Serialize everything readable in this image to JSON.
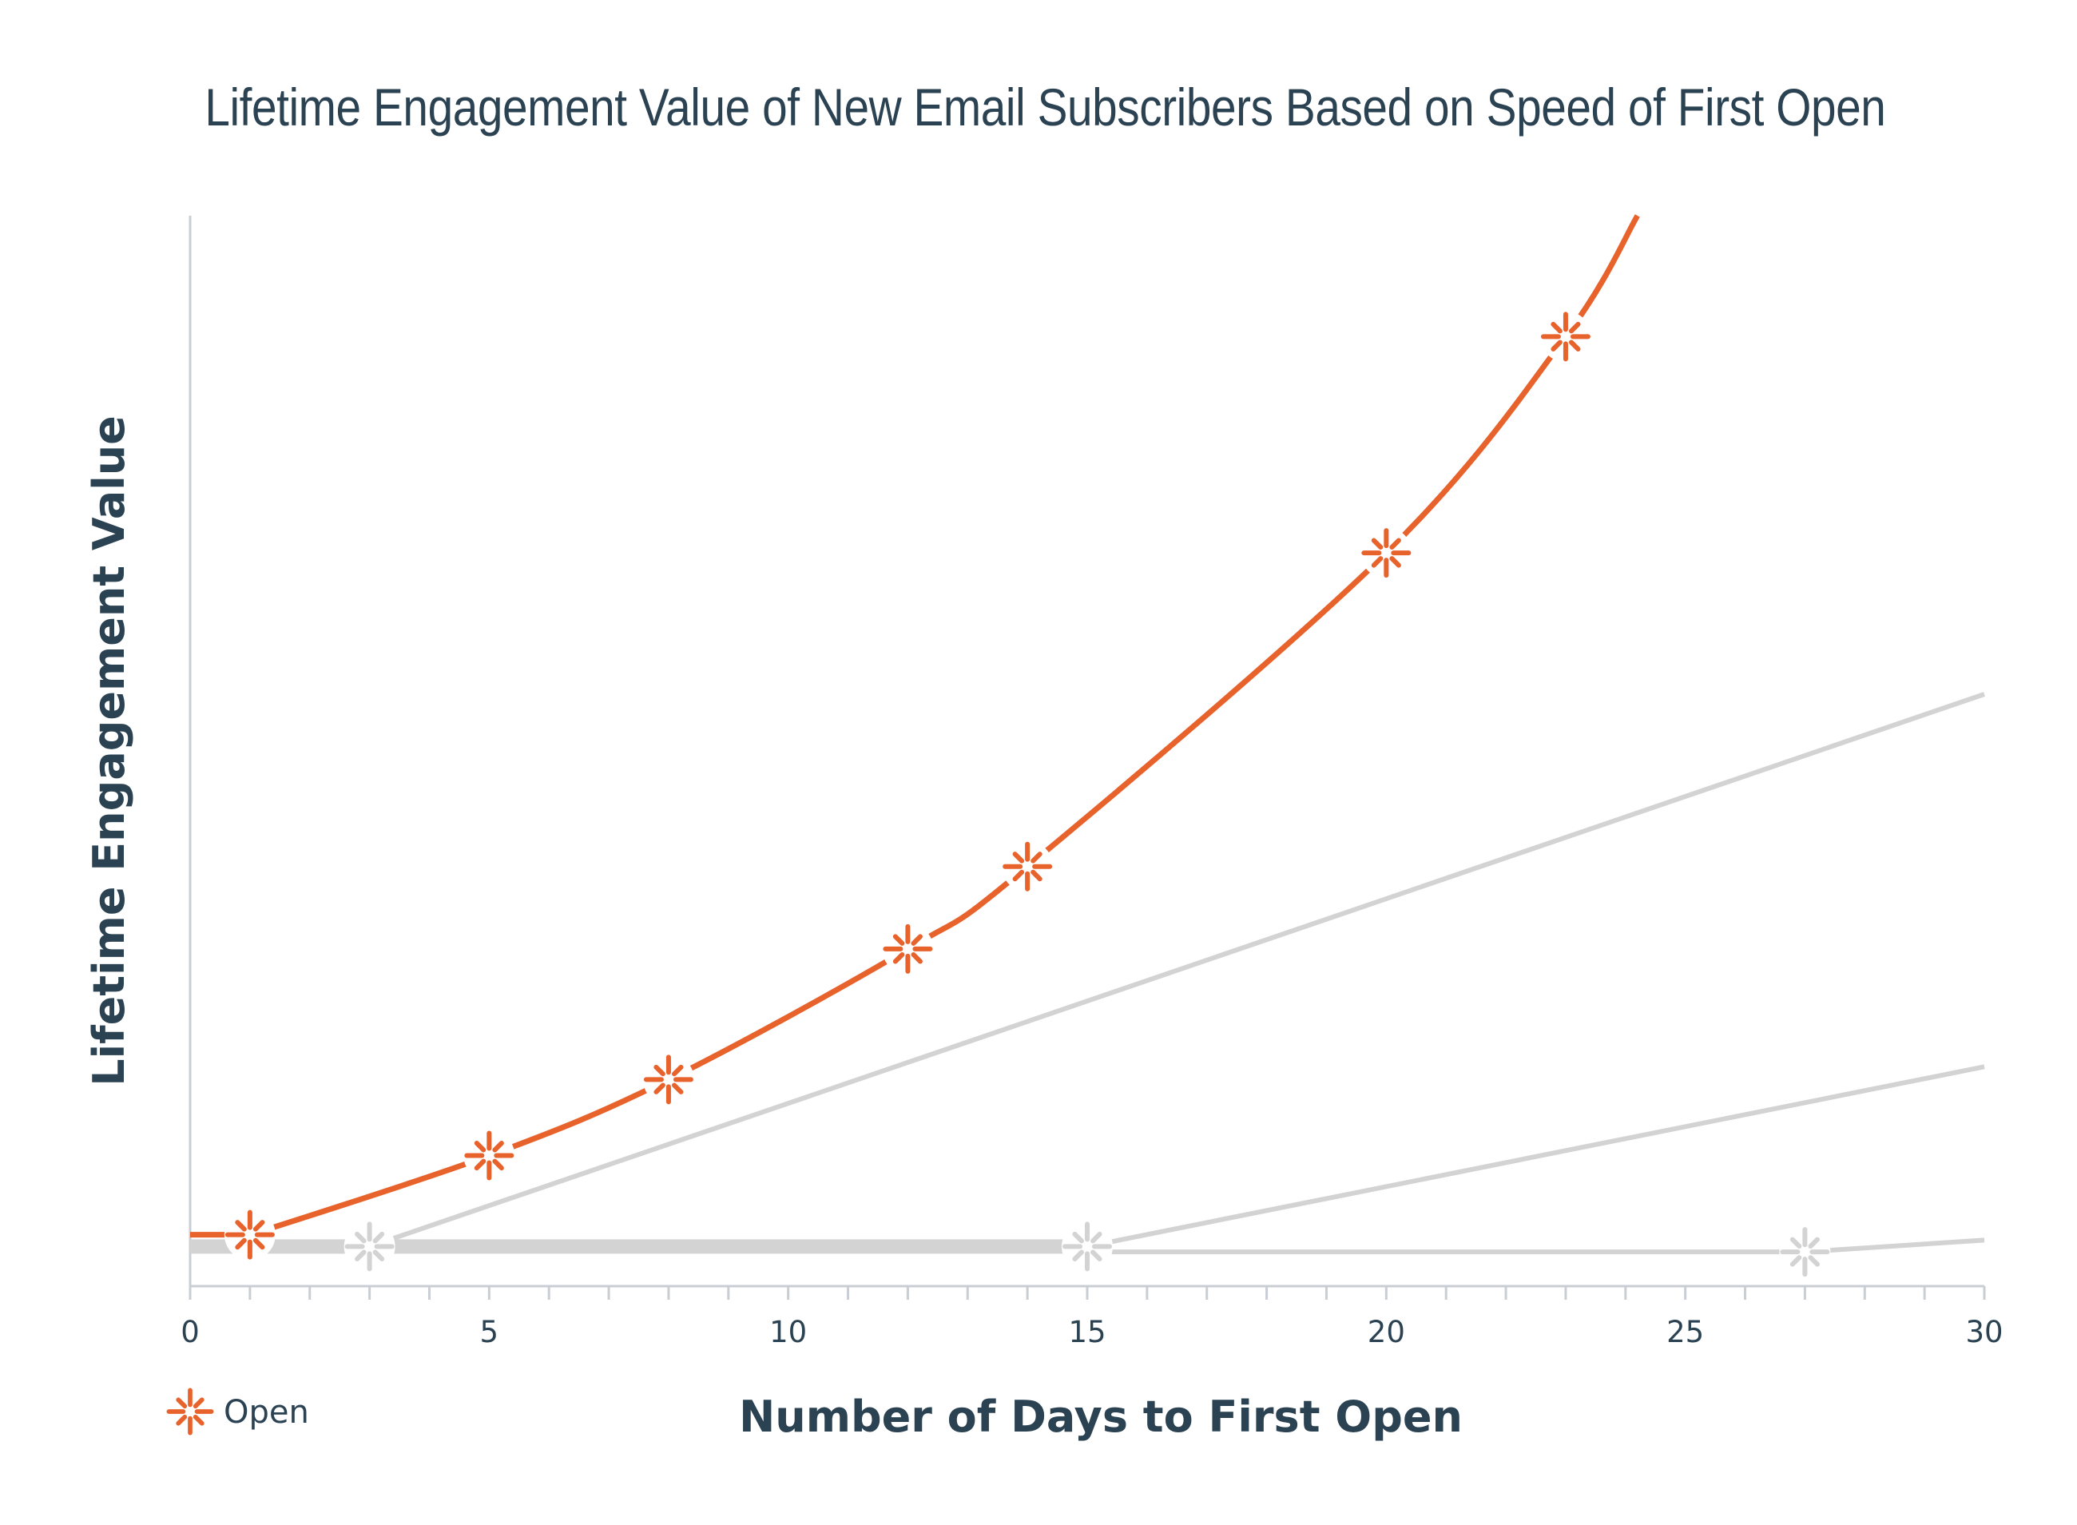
{
  "chart_data": {
    "type": "line",
    "title": "Lifetime Engagement Value of New Email Subscribers Based on Speed of First Open",
    "xlabel": "Number of Days to First Open",
    "ylabel": "Lifetime Engagement Value",
    "xlim": [
      0,
      30
    ],
    "x_ticks": [
      "0",
      "5",
      "10",
      "15",
      "20",
      "25",
      "30"
    ],
    "ylim": [
      0,
      100
    ],
    "grid": false,
    "legend_position": "bottom-left",
    "legend": [
      "Open"
    ],
    "colors": {
      "open": "#e8622b",
      "baseline": "#d3d3d3",
      "axis": "#c9ced4",
      "text": "#2b4252"
    },
    "marker_icon": "burst-icon",
    "series": [
      {
        "name": "Open",
        "color": "#e8622b",
        "x": [
          0,
          1,
          5,
          8,
          12,
          14,
          20,
          23,
          24.2
        ],
        "y": [
          4.8,
          4.8,
          12.2,
          19.3,
          31.5,
          39.2,
          68.5,
          88.7,
          100
        ]
      }
    ],
    "baseline_series": [
      {
        "color": "#d3d3d3",
        "x": [
          0,
          3
        ],
        "y": [
          3.7,
          3.7
        ],
        "thick": true
      },
      {
        "color": "#d3d3d3",
        "x": [
          3,
          30
        ],
        "y": [
          3.7,
          55.3
        ]
      },
      {
        "color": "#d3d3d3",
        "x": [
          3,
          15
        ],
        "y": [
          3.7,
          3.7
        ],
        "thick": true
      },
      {
        "color": "#d3d3d3",
        "x": [
          15,
          30
        ],
        "y": [
          3.7,
          20.5
        ]
      },
      {
        "color": "#d3d3d3",
        "x": [
          15,
          27
        ],
        "y": [
          3.2,
          3.2
        ]
      },
      {
        "color": "#d3d3d3",
        "x": [
          27,
          30
        ],
        "y": [
          3.2,
          4.3
        ]
      }
    ],
    "baseline_markers": [
      {
        "x": 3,
        "y": 3.7
      },
      {
        "x": 15,
        "y": 3.7
      },
      {
        "x": 27,
        "y": 3.2
      }
    ],
    "open_markers": [
      1,
      5,
      8,
      12,
      14,
      20,
      23
    ]
  }
}
